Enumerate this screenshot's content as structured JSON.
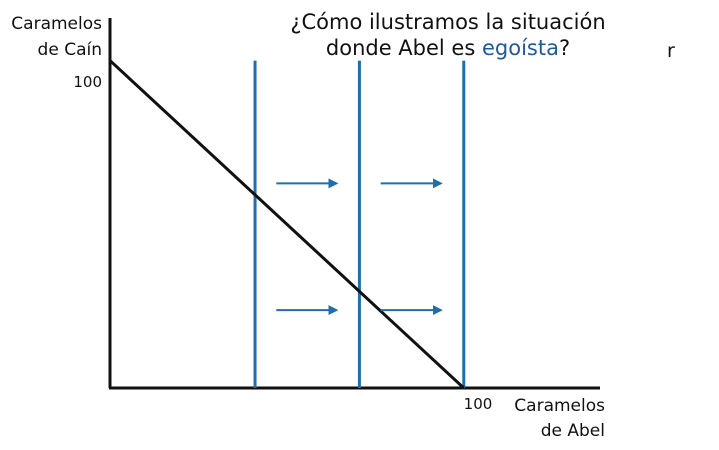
{
  "title": {
    "line1": "¿Cómo ilustramos la situación",
    "line2_prefix": "donde Abel es ",
    "line2_highlight": "egoísta",
    "line2_suffix": "?"
  },
  "stray_text": "r",
  "colors": {
    "highlight": "#1F5A9A",
    "axis": "#111111",
    "budget_line": "#111111",
    "vertical_lines": "#1F6FAD",
    "arrows": "#1F6FAD"
  },
  "chart_data": {
    "type": "line",
    "ylabel": [
      "Caramelos",
      "de Caín"
    ],
    "xlabel": [
      "Caramelos",
      "de Abel"
    ],
    "xlim": [
      0,
      135
    ],
    "ylim": [
      0,
      113
    ],
    "xticks": [
      100
    ],
    "yticks": [
      100
    ],
    "grid": false,
    "series": [
      {
        "kind": "budget-line",
        "x": [
          0,
          100
        ],
        "y": [
          100,
          0
        ]
      }
    ],
    "vertical_lines": [
      41,
      70.5,
      100
    ],
    "vertical_line_top": 100,
    "arrows": [
      {
        "x_start": 47,
        "x_end": 64,
        "y": 62.5
      },
      {
        "x_start": 76.5,
        "x_end": 93.5,
        "y": 62.5
      },
      {
        "x_start": 47,
        "x_end": 64,
        "y": 23.8
      },
      {
        "x_start": 76.5,
        "x_end": 93.5,
        "y": 23.8
      }
    ]
  }
}
